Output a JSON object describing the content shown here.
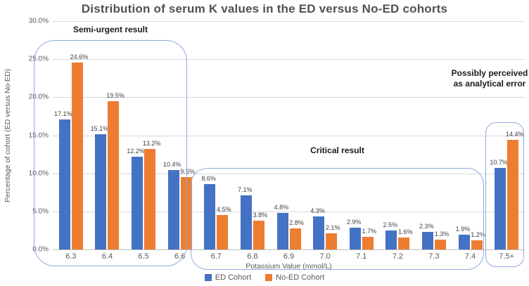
{
  "title": "Distribution of serum K values in the ED versus No-ED cohorts",
  "chart_data": {
    "type": "bar",
    "categories": [
      "6.3",
      "6.4",
      "6.5",
      "6.6",
      "6.7",
      "6.8",
      "6.9",
      "7.0",
      "7.1",
      "7.2",
      "7.3",
      "7.4",
      "7.5+"
    ],
    "series": [
      {
        "name": "ED Cohort",
        "color": "#4472C4",
        "values": [
          17.1,
          15.1,
          12.2,
          10.4,
          8.6,
          7.1,
          4.8,
          4.3,
          2.9,
          2.5,
          2.3,
          1.9,
          10.7
        ]
      },
      {
        "name": "No-ED Cohort",
        "color": "#ED7D31",
        "values": [
          24.6,
          19.5,
          13.2,
          9.5,
          4.5,
          3.8,
          2.8,
          2.1,
          1.7,
          1.6,
          1.3,
          1.2,
          14.4
        ]
      }
    ],
    "title": "Distribution of serum K values in the ED versus No-ED cohorts",
    "xlabel": "Potassium Value (mmol/L)",
    "ylabel": "Percentage of cohort (ED versus No-ED)",
    "ylim": [
      0,
      30
    ],
    "ytick_step": 5,
    "ytick_labels": [
      "0.0%",
      "5.0%",
      "10.0%",
      "15.0%",
      "20.0%",
      "25.0%",
      "30.0%"
    ],
    "data_label_suffix": "%",
    "grid": true,
    "legend_position": "bottom",
    "annotations": [
      {
        "label": "Semi-urgent result",
        "from_category": "6.3",
        "to_category": "6.6"
      },
      {
        "label": "Critical result",
        "from_category": "6.7",
        "to_category": "7.4"
      },
      {
        "label": "Possibly perceived as analytical error",
        "from_category": "7.5+",
        "to_category": "7.5+"
      }
    ]
  },
  "annotations": {
    "semi_urgent": "Semi-urgent result",
    "critical": "Critical result",
    "analytical_error_line1": "Possibly perceived",
    "analytical_error_line2": "as analytical error"
  },
  "legend": {
    "ed": "ED Cohort",
    "noed": "No-ED Cohort"
  },
  "colors": {
    "ed_bar": "#4472C4",
    "noed_bar": "#ED7D31",
    "box_border": "#8FAADC",
    "gridline": "#D9D9D9",
    "text": "#595959"
  }
}
